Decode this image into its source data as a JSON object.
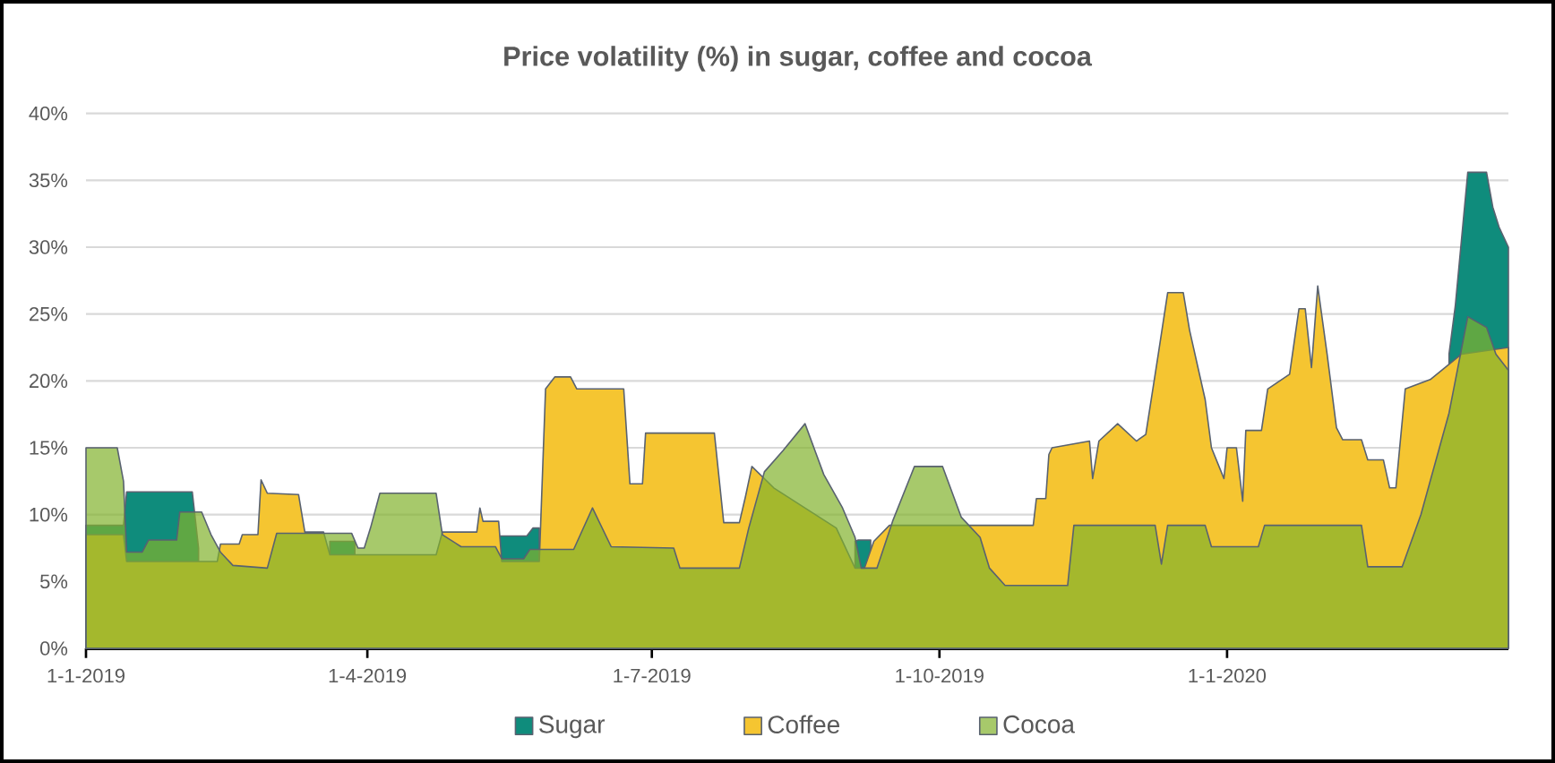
{
  "chart_data": {
    "type": "area",
    "title": "Price volatility (%) in sugar, coffee and cocoa",
    "xlim": [
      "2019-01-01",
      "2020-03-31"
    ],
    "xticks": [
      {
        "value": "2019-01-01",
        "label": "1-1-2019"
      },
      {
        "value": "2019-04-01",
        "label": "1-4-2019"
      },
      {
        "value": "2019-07-01",
        "label": "1-7-2019"
      },
      {
        "value": "2019-10-01",
        "label": "1-10-2019"
      },
      {
        "value": "2020-01-01",
        "label": "1-1-2020"
      }
    ],
    "ylim": [
      0,
      40
    ],
    "yticks": [
      {
        "value": 0,
        "label": "0%"
      },
      {
        "value": 5,
        "label": "5%"
      },
      {
        "value": 10,
        "label": "10%"
      },
      {
        "value": 15,
        "label": "15%"
      },
      {
        "value": 20,
        "label": "20%"
      },
      {
        "value": 25,
        "label": "25%"
      },
      {
        "value": 30,
        "label": "30%"
      },
      {
        "value": 35,
        "label": "35%"
      },
      {
        "value": 40,
        "label": "40%"
      }
    ],
    "grid": "y",
    "legend": "bottom",
    "series": [
      {
        "name": "Sugar",
        "color": "#0f8c7c",
        "x": [
          "2019-01-01",
          "2019-01-13",
          "2019-01-14",
          "2019-02-04",
          "2019-02-06",
          "2019-02-28",
          "2019-03-20",
          "2019-03-28",
          "2019-04-15",
          "2019-05-13",
          "2019-05-22",
          "2019-05-24",
          "2019-05-26",
          "2019-06-15",
          "2019-09-04",
          "2019-09-05",
          "2019-09-09",
          "2019-10-15",
          "2020-03-12",
          "2020-03-14",
          "2020-03-18",
          "2020-03-24",
          "2020-03-26",
          "2020-03-28",
          "2020-03-31"
        ],
        "values": [
          9.2,
          9.2,
          11.7,
          11.7,
          7.5,
          null,
          8.0,
          8.0,
          null,
          8.4,
          8.4,
          9.0,
          9.0,
          null,
          8.0,
          8.1,
          8.1,
          null,
          22.0,
          25.6,
          35.6,
          35.6,
          33.0,
          31.5,
          30.0
        ]
      },
      {
        "name": "Coffee",
        "color": "#f5c531",
        "x": [
          "2019-01-01",
          "2019-01-13",
          "2019-01-14",
          "2019-02-12",
          "2019-02-13",
          "2019-02-19",
          "2019-02-20",
          "2019-02-25",
          "2019-02-26",
          "2019-02-28",
          "2019-03-10",
          "2019-03-12",
          "2019-03-18",
          "2019-03-20",
          "2019-04-23",
          "2019-04-25",
          "2019-05-06",
          "2019-05-07",
          "2019-05-08",
          "2019-05-13",
          "2019-05-14",
          "2019-05-26",
          "2019-05-28",
          "2019-05-31",
          "2019-06-05",
          "2019-06-07",
          "2019-06-22",
          "2019-06-24",
          "2019-06-28",
          "2019-06-29",
          "2019-07-21",
          "2019-07-24",
          "2019-07-29",
          "2019-07-31",
          "2019-08-02",
          "2019-08-09",
          "2019-08-29",
          "2019-09-04",
          "2019-09-07",
          "2019-09-10",
          "2019-09-15",
          "2019-10-31",
          "2019-11-01",
          "2019-11-04",
          "2019-11-05",
          "2019-11-06",
          "2019-11-18",
          "2019-11-19",
          "2019-11-21",
          "2019-11-27",
          "2019-12-03",
          "2019-12-06",
          "2019-12-10",
          "2019-12-13",
          "2019-12-18",
          "2019-12-20",
          "2019-12-25",
          "2019-12-27",
          "2019-12-31",
          "2020-01-01",
          "2020-01-04",
          "2020-01-06",
          "2020-01-07",
          "2020-01-12",
          "2020-01-14",
          "2020-01-21",
          "2020-01-24",
          "2020-01-26",
          "2020-01-28",
          "2020-01-30",
          "2020-02-02",
          "2020-02-05",
          "2020-02-07",
          "2020-02-13",
          "2020-02-15",
          "2020-02-20",
          "2020-02-22",
          "2020-02-24",
          "2020-02-27",
          "2020-03-06",
          "2020-03-16",
          "2020-03-31"
        ],
        "values": [
          8.5,
          8.5,
          6.5,
          6.5,
          7.8,
          7.8,
          8.5,
          8.5,
          12.6,
          11.6,
          11.5,
          8.7,
          8.7,
          7.0,
          7.0,
          8.7,
          8.7,
          10.5,
          9.5,
          9.5,
          6.5,
          6.5,
          19.4,
          20.3,
          20.3,
          19.4,
          19.4,
          12.3,
          12.3,
          16.1,
          16.1,
          9.4,
          9.4,
          11.4,
          13.6,
          12.0,
          9.0,
          6.0,
          6.0,
          8.0,
          9.2,
          9.2,
          11.2,
          11.2,
          14.5,
          15.0,
          15.5,
          12.7,
          15.5,
          16.8,
          15.5,
          16.0,
          22.0,
          26.6,
          26.6,
          23.8,
          18.6,
          15.0,
          12.7,
          15.0,
          15.0,
          11.0,
          16.3,
          16.3,
          19.4,
          20.5,
          25.4,
          25.4,
          21.0,
          27.1,
          22.0,
          16.5,
          15.6,
          15.6,
          14.1,
          14.1,
          12.0,
          12.0,
          19.4,
          20.1,
          22.0,
          22.5
        ]
      },
      {
        "name": "Cocoa",
        "color": "#81b22c",
        "x": [
          "2019-01-01",
          "2019-01-11",
          "2019-01-13",
          "2019-01-14",
          "2019-01-19",
          "2019-01-21",
          "2019-01-30",
          "2019-01-31",
          "2019-02-07",
          "2019-02-10",
          "2019-02-13",
          "2019-02-17",
          "2019-02-28",
          "2019-03-03",
          "2019-03-27",
          "2019-03-29",
          "2019-03-31",
          "2019-04-02",
          "2019-04-05",
          "2019-04-23",
          "2019-04-25",
          "2019-05-01",
          "2019-05-12",
          "2019-05-14",
          "2019-05-21",
          "2019-05-23",
          "2019-06-06",
          "2019-06-12",
          "2019-06-18",
          "2019-07-08",
          "2019-07-10",
          "2019-07-29",
          "2019-08-01",
          "2019-08-06",
          "2019-08-12",
          "2019-08-19",
          "2019-08-25",
          "2019-08-31",
          "2019-09-04",
          "2019-09-06",
          "2019-09-11",
          "2019-09-16",
          "2019-09-23",
          "2019-10-02",
          "2019-10-08",
          "2019-10-14",
          "2019-10-17",
          "2019-10-22",
          "2019-11-11",
          "2019-11-13",
          "2019-12-09",
          "2019-12-11",
          "2019-12-13",
          "2019-12-25",
          "2019-12-27",
          "2020-01-11",
          "2020-01-13",
          "2020-02-13",
          "2020-02-15",
          "2020-02-26",
          "2020-03-03",
          "2020-03-12",
          "2020-03-18",
          "2020-03-24",
          "2020-03-27",
          "2020-03-31"
        ],
        "values": [
          15.0,
          15.0,
          12.5,
          7.2,
          7.2,
          8.1,
          8.1,
          10.2,
          10.2,
          8.5,
          7.2,
          6.2,
          6.0,
          8.6,
          8.6,
          7.5,
          7.5,
          9.0,
          11.6,
          11.6,
          8.5,
          7.6,
          7.6,
          6.7,
          6.7,
          7.4,
          7.4,
          10.5,
          7.6,
          7.5,
          6.0,
          6.0,
          9.0,
          13.2,
          14.8,
          16.8,
          13.0,
          10.5,
          8.3,
          6.0,
          6.0,
          9.5,
          13.6,
          13.6,
          9.8,
          8.3,
          6.0,
          4.7,
          4.7,
          9.2,
          9.2,
          6.3,
          9.2,
          9.2,
          7.6,
          7.6,
          9.2,
          9.2,
          6.1,
          6.1,
          10.0,
          17.6,
          24.8,
          24.0,
          22.0,
          20.8
        ]
      }
    ]
  }
}
